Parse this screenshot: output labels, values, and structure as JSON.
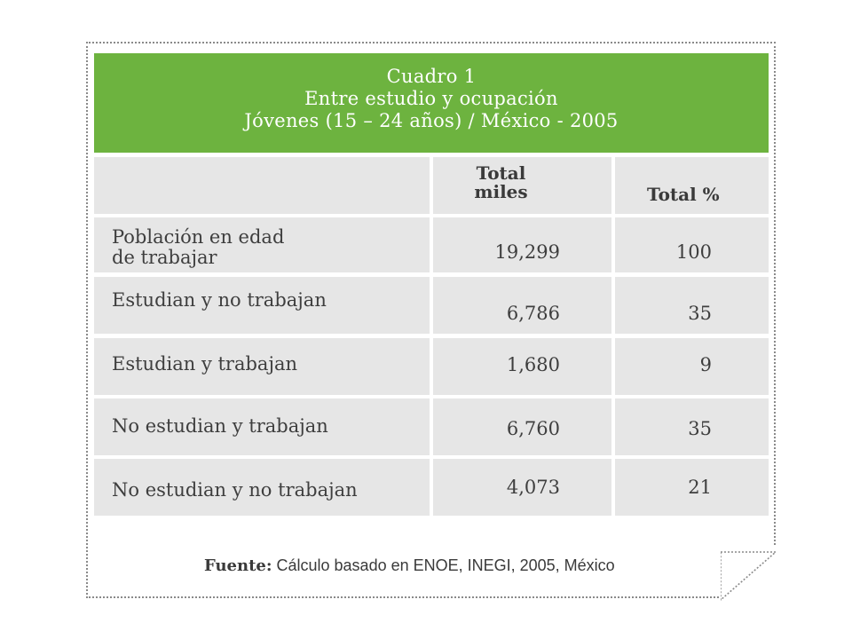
{
  "table": {
    "title_lines": [
      "Cuadro 1",
      "Entre estudio y ocupación",
      "Jóvenes (15 – 24 años) / México - 2005"
    ],
    "headers": {
      "col1_line1": "Total",
      "col1_line2": "miles",
      "col2": "Total %"
    },
    "rows": [
      {
        "label_line1": "Población en edad",
        "label_line2": "de trabajar",
        "miles": "19,299",
        "pct": "100"
      },
      {
        "label_line1": "Estudian y no trabajan",
        "label_line2": "",
        "miles": "6,786",
        "pct": "35"
      },
      {
        "label_line1": "Estudian y trabajan",
        "label_line2": "",
        "miles": "1,680",
        "pct": "9"
      },
      {
        "label_line1": "No estudian y trabajan",
        "label_line2": "",
        "miles": "6,760",
        "pct": "35"
      },
      {
        "label_line1": "No estudian y no trabajan",
        "label_line2": "",
        "miles": "4,073",
        "pct": "21"
      }
    ]
  },
  "source": {
    "label": "Fuente:",
    "text": " Cálculo basado en ENOE, INEGI, 2005, México"
  },
  "colors": {
    "title_bg": "#6db33f",
    "cell_bg": "#e6e6e6"
  }
}
